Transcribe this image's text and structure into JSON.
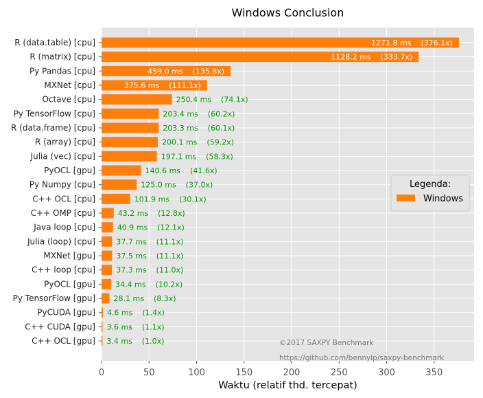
{
  "chart_data": {
    "type": "bar",
    "orientation": "horizontal",
    "title": "Windows Conclusion",
    "xlabel": "Waktu (relatif thd. tercepat)",
    "ylabel": "",
    "xlim": [
      0,
      392
    ],
    "xticks": [
      0,
      50,
      100,
      150,
      200,
      250,
      300,
      350
    ],
    "grid": true,
    "bar_color": "#ff7f0e",
    "label_inside_color": "#ffffff",
    "label_outside_color": "#009900",
    "categories": [
      "R (data.table) [cpu]",
      "R (matrix) [cpu]",
      "Py Pandas [cpu]",
      "MXNet [cpu]",
      "Octave [cpu]",
      "Py TensorFlow [cpu]",
      "R (data.frame) [cpu]",
      "R (array) [cpu]",
      "Julia (vec) [cpu]",
      "PyOCL [gpu]",
      "Py Numpy [cpu]",
      "C++ OCL [cpu]",
      "C++ OMP [cpu]",
      "Java loop [cpu]",
      "Julia (loop) [cpu]",
      "MXNet [gpu]",
      "C++ loop [cpu]",
      "PyOCL [gpu]",
      "Py TensorFlow [gpu]",
      "PyCUDA [gpu]",
      "C++ CUDA [gpu]",
      "C++ OCL [gpu]"
    ],
    "values": [
      376.1,
      333.7,
      135.8,
      111.1,
      74.1,
      60.2,
      60.1,
      59.2,
      58.3,
      41.6,
      37.0,
      30.1,
      12.8,
      12.1,
      11.1,
      11.1,
      11.0,
      10.2,
      8.3,
      1.4,
      1.1,
      1.0
    ],
    "data_labels": [
      "1271.8 ms    (376.1x)",
      "1128.2 ms    (333.7x)",
      "459.0 ms    (135.8x)",
      "375.6 ms    (111.1x)",
      "250.4 ms    (74.1x)",
      "203.4 ms    (60.2x)",
      "203.3 ms    (60.1x)",
      "200.1 ms    (59.2x)",
      "197.1 ms    (58.3x)",
      "140.6 ms    (41.6x)",
      "125.0 ms    (37.0x)",
      "101.9 ms    (30.1x)",
      "43.2 ms    (12.8x)",
      "40.9 ms    (12.1x)",
      "37.7 ms    (11.1x)",
      "37.5 ms    (11.1x)",
      "37.3 ms    (11.0x)",
      "34.4 ms    (10.2x)",
      "28.1 ms    (8.3x)",
      "4.6 ms    (1.4x)",
      "3.6 ms    (1.1x)",
      "3.4 ms    (1.0x)"
    ],
    "labels_inside": [
      true,
      true,
      true,
      true,
      false,
      false,
      false,
      false,
      false,
      false,
      false,
      false,
      false,
      false,
      false,
      false,
      false,
      false,
      false,
      false,
      false,
      false
    ],
    "legend": {
      "title": "Legenda:",
      "entries": [
        "Windows"
      ],
      "placement": "right"
    },
    "footer": [
      "©2017 SAXPY Benchmark",
      "https://github.com/bennylp/saxpy-benchmark"
    ]
  }
}
